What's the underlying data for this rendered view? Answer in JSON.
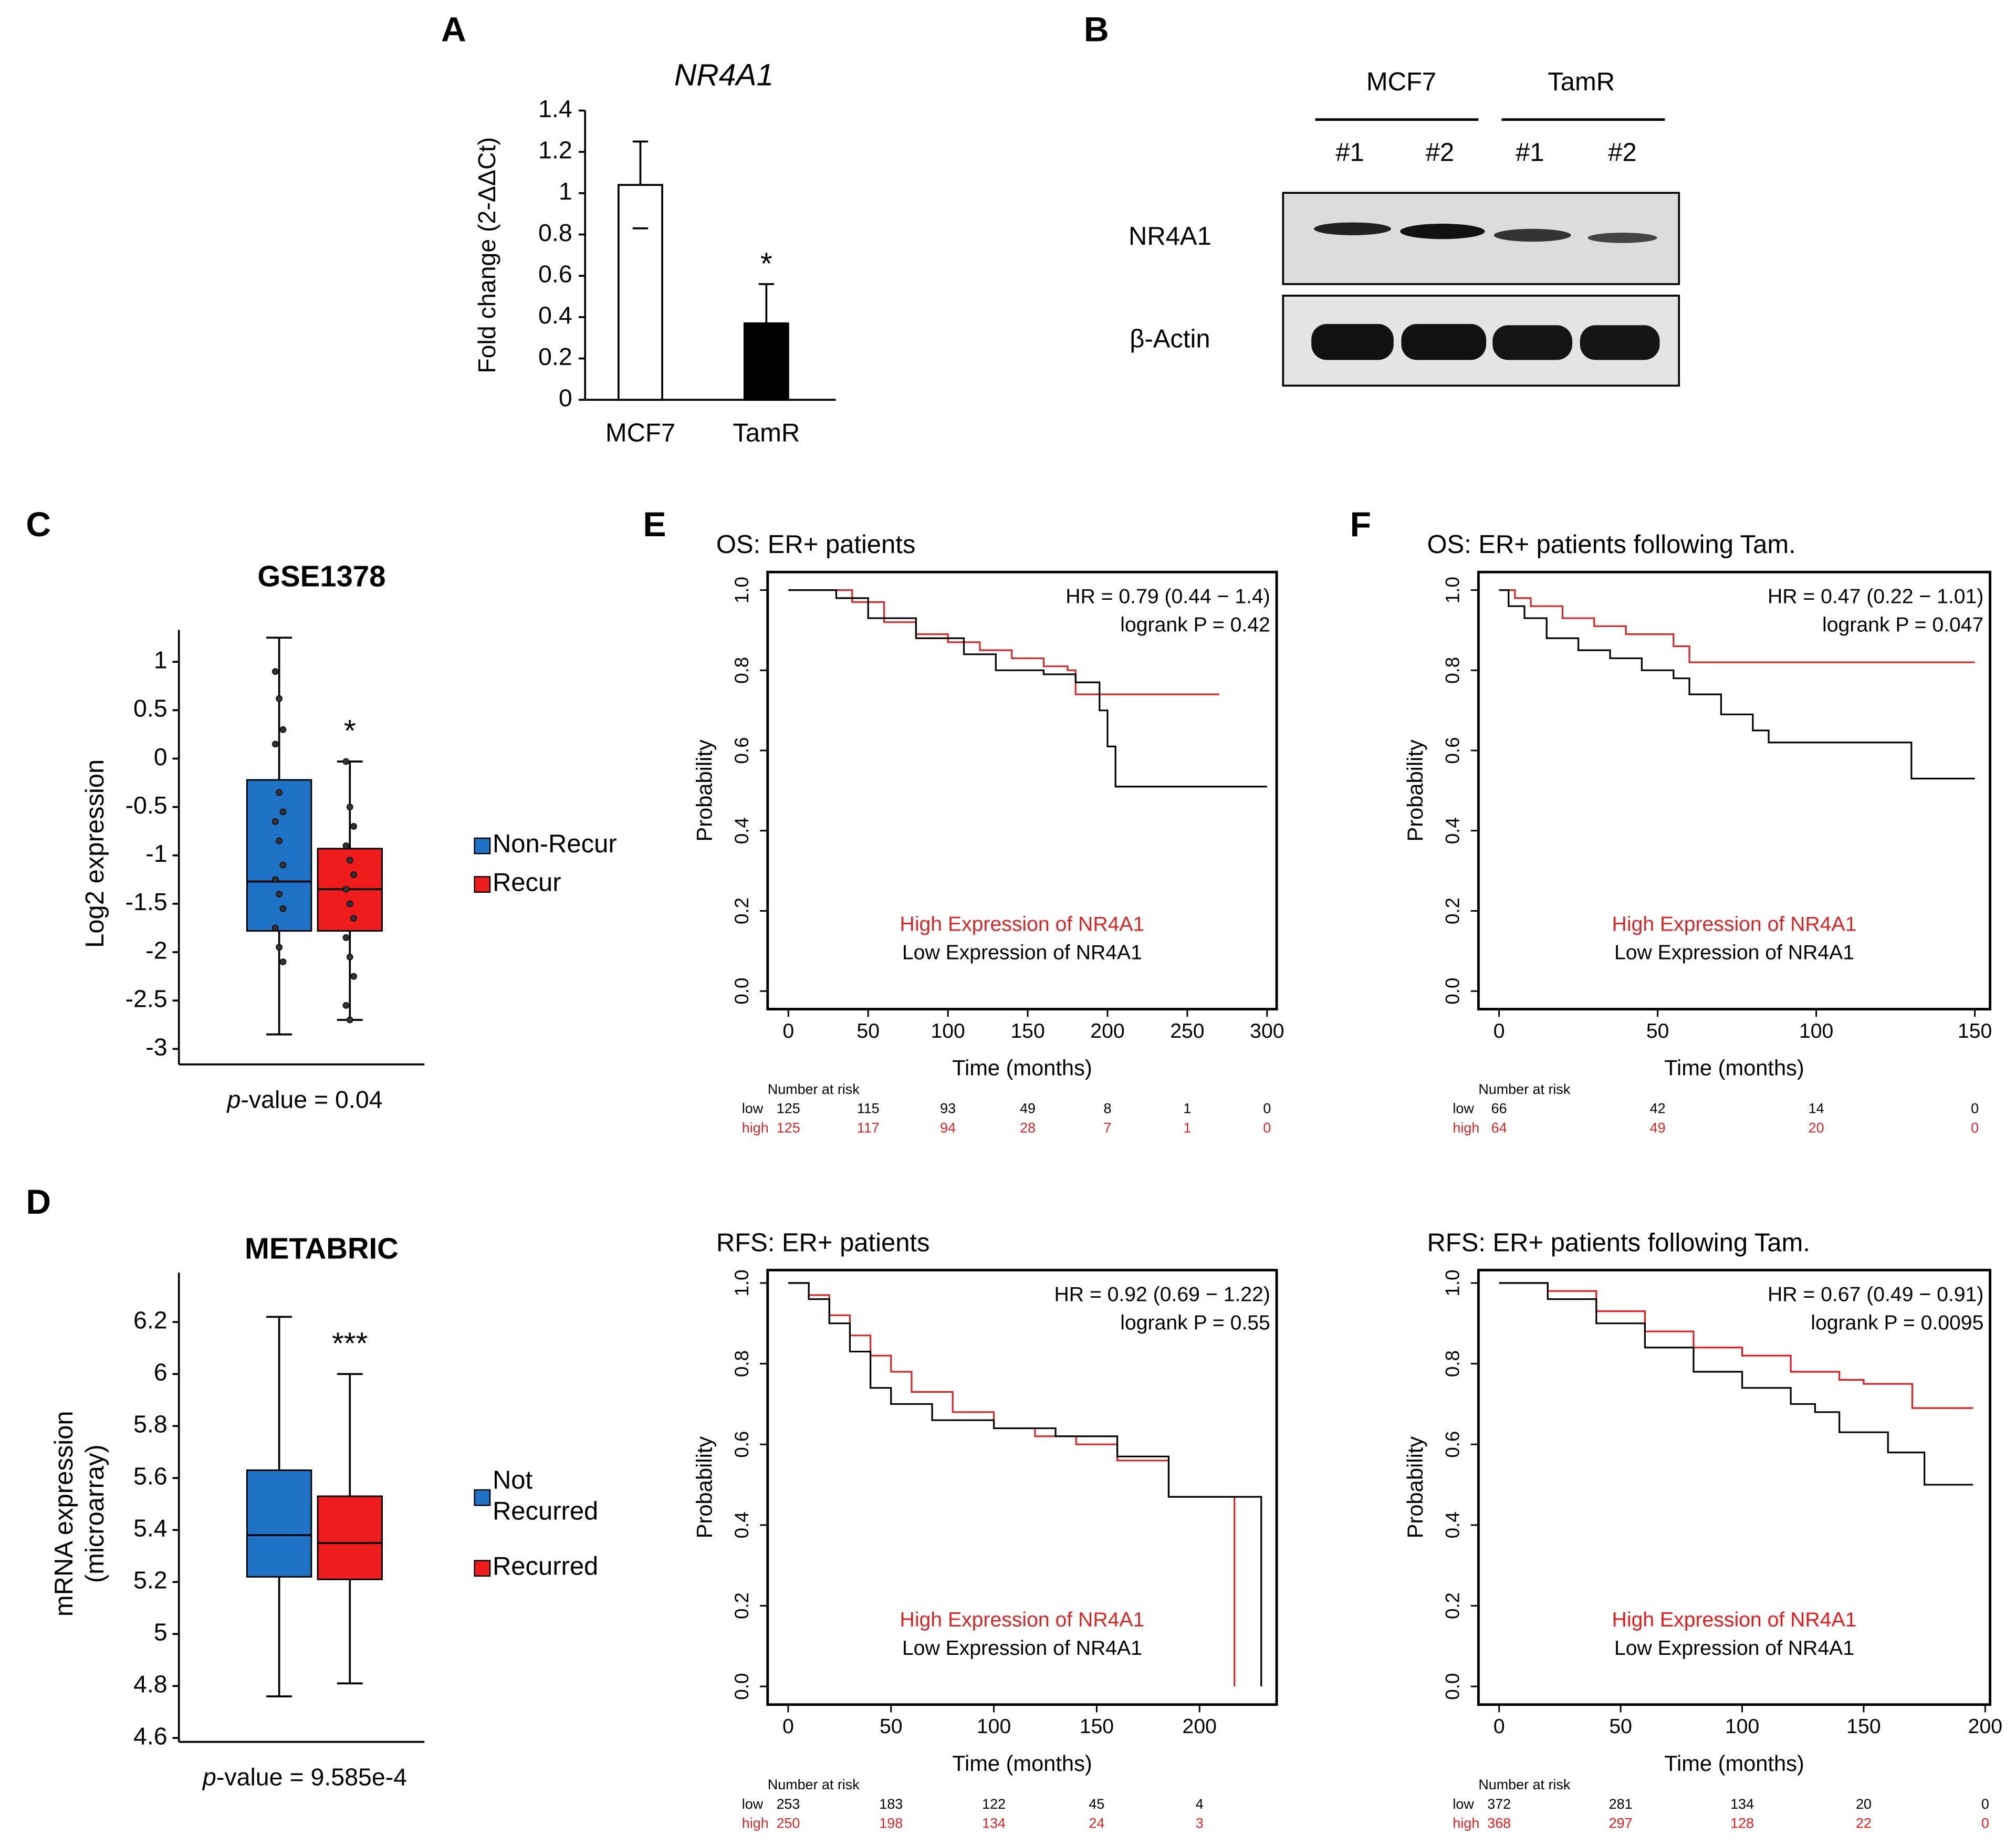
{
  "chart_data": [
    {
      "type": "bar",
      "panel_label": "A",
      "title": "NR4A1",
      "ylabel": "Fold change (2-ΔΔCt)",
      "categories": [
        "MCF7",
        "TamR"
      ],
      "values": [
        1.04,
        0.37
      ],
      "errors": [
        0.21,
        0.19
      ],
      "colors": [
        "#ffffff",
        "#000000"
      ],
      "ylim": [
        0,
        1.4
      ],
      "yticks": [
        0,
        0.2,
        0.4,
        0.6,
        0.8,
        1,
        1.2,
        1.4
      ],
      "annotations": [
        {
          "category": 1,
          "text": "*"
        }
      ]
    },
    {
      "type": "blot",
      "panel_label": "B",
      "groups": [
        "MCF7",
        "TamR"
      ],
      "lanes": [
        "#1",
        "#2",
        "#1",
        "#2"
      ],
      "rows": [
        "NR4A1",
        "β-Actin"
      ]
    },
    {
      "type": "box",
      "panel_label": "C",
      "title": "GSE1378",
      "ylabel": [
        "Log2 expression"
      ],
      "p_label": "p",
      "p_text": "-value = 0.04",
      "ylim": [
        -3.16,
        1.33
      ],
      "yticks": [
        -3,
        -2.5,
        -2,
        -1.5,
        -1,
        -0.5,
        0,
        0.5,
        1
      ],
      "series": [
        {
          "name": "Non-Recur",
          "color": "#1f73c6",
          "values": {
            "min": -2.85,
            "q1": -1.78,
            "median": -1.27,
            "q3": -0.22,
            "max": 1.25
          },
          "points": [
            0.9,
            0.62,
            0.3,
            0.15,
            -0.35,
            -0.55,
            -0.65,
            -0.85,
            -1.1,
            -1.25,
            -1.4,
            -1.55,
            -1.75,
            -1.95,
            -2.1
          ]
        },
        {
          "name": "Recur",
          "color": "#ee1c1c",
          "values": {
            "min": -2.7,
            "q1": -1.78,
            "median": -1.35,
            "q3": -0.93,
            "max": -0.03
          },
          "points": [
            -0.03,
            -0.5,
            -0.7,
            -0.9,
            -1.05,
            -1.2,
            -1.35,
            -1.5,
            -1.65,
            -1.85,
            -2.05,
            -2.25,
            -2.55,
            -2.7
          ]
        }
      ],
      "annotations": [
        {
          "category": 1,
          "text": "*"
        }
      ]
    },
    {
      "type": "box",
      "panel_label": "D",
      "title": "METABRIC",
      "ylabel": [
        "mRNA expression",
        "(microarray)"
      ],
      "p_label": "p",
      "p_text": "-value = 9.585e-4",
      "ylim": [
        4.585,
        6.39
      ],
      "yticks": [
        4.6,
        4.8,
        5,
        5.2,
        5.4,
        5.6,
        5.8,
        6,
        6.2
      ],
      "series": [
        {
          "name": "Not Recurred",
          "color": "#1f73c6",
          "values": {
            "min": 4.76,
            "q1": 5.22,
            "median": 5.38,
            "q3": 5.63,
            "max": 6.22
          }
        },
        {
          "name": "Recurred",
          "color": "#ee1c1c",
          "values": {
            "min": 4.81,
            "q1": 5.21,
            "median": 5.35,
            "q3": 5.53,
            "max": 6.0
          }
        }
      ],
      "annotations": [
        {
          "category": 1,
          "text": "***"
        }
      ]
    },
    {
      "type": "line",
      "panel_label": "E",
      "title": "OS: ER+ patients",
      "hr": "HR = 0.79 (0.44 − 1.4)",
      "logrank": "logrank P = 0.42",
      "xlabel": "Time (months)",
      "ylabel": "Probability",
      "xlim": [
        -13,
        306
      ],
      "ylim": [
        -0.045,
        1.045
      ],
      "xticks": [
        0,
        50,
        100,
        150,
        200,
        250,
        300
      ],
      "yticks": [
        {
          "value": 0,
          "label": "0.0"
        },
        {
          "value": 0.2,
          "label": "0.2"
        },
        {
          "value": 0.4,
          "label": "0.4"
        },
        {
          "value": 0.6,
          "label": "0.6"
        },
        {
          "value": 0.8,
          "label": "0.8"
        },
        {
          "value": 1,
          "label": "1.0"
        }
      ],
      "series": [
        {
          "name": "High Expression of NR4A1",
          "risk_label": "high",
          "color": "#d62728",
          "x": [
            0,
            20,
            40,
            60,
            80,
            100,
            120,
            140,
            160,
            175,
            180,
            270
          ],
          "values": [
            1,
            1,
            0.97,
            0.92,
            0.89,
            0.87,
            0.85,
            0.83,
            0.81,
            0.8,
            0.74,
            0.74
          ],
          "risk": [
            125,
            117,
            94,
            28,
            7,
            1,
            0
          ]
        },
        {
          "name": "Low Expression of NR4A1",
          "risk_label": "low",
          "color": "#000000",
          "x": [
            0,
            30,
            50,
            80,
            110,
            130,
            160,
            180,
            195,
            200,
            205,
            300
          ],
          "values": [
            1,
            0.98,
            0.93,
            0.88,
            0.84,
            0.8,
            0.79,
            0.77,
            0.7,
            0.61,
            0.51,
            0.51
          ],
          "risk": [
            125,
            115,
            93,
            49,
            8,
            1,
            0
          ]
        }
      ],
      "risk_title": "Number at risk"
    },
    {
      "type": "line",
      "title": "RFS: ER+ patients",
      "hr": "HR = 0.92 (0.69 − 1.22)",
      "logrank": "logrank P = 0.55",
      "xlabel": "Time (months)",
      "ylabel": "Probability",
      "xlim": [
        -10,
        237.5
      ],
      "ylim": [
        -0.045,
        1.032
      ],
      "xticks": [
        0,
        50,
        100,
        150,
        200
      ],
      "yticks": [
        {
          "value": 0,
          "label": "0.0"
        },
        {
          "value": 0.2,
          "label": "0.2"
        },
        {
          "value": 0.4,
          "label": "0.4"
        },
        {
          "value": 0.6,
          "label": "0.6"
        },
        {
          "value": 0.8,
          "label": "0.8"
        },
        {
          "value": 1,
          "label": "1.0"
        }
      ],
      "series": [
        {
          "name": "High Expression of NR4A1",
          "risk_label": "high",
          "color": "#d62728",
          "x": [
            0,
            10,
            20,
            30,
            40,
            50,
            60,
            80,
            100,
            120,
            140,
            160,
            185,
            217,
            217
          ],
          "values": [
            1,
            0.97,
            0.92,
            0.87,
            0.82,
            0.78,
            0.73,
            0.68,
            0.64,
            0.62,
            0.6,
            0.56,
            0.47,
            0.47,
            0
          ],
          "risk": [
            250,
            198,
            134,
            24,
            3
          ]
        },
        {
          "name": "Low Expression of NR4A1",
          "risk_label": "low",
          "color": "#000000",
          "x": [
            0,
            10,
            20,
            30,
            40,
            50,
            70,
            100,
            130,
            160,
            185,
            230,
            230
          ],
          "values": [
            1,
            0.96,
            0.9,
            0.83,
            0.74,
            0.7,
            0.66,
            0.64,
            0.62,
            0.57,
            0.47,
            0.47,
            0
          ],
          "risk": [
            253,
            183,
            122,
            45,
            4
          ]
        }
      ],
      "risk_title": "Number at risk"
    },
    {
      "type": "line",
      "panel_label": "F",
      "title": "OS: ER+ patients following Tam.",
      "hr": "HR = 0.47 (0.22 − 1.01)",
      "logrank": "logrank P = 0.047",
      "xlabel": "Time (months)",
      "ylabel": "Probability",
      "xlim": [
        -6.5,
        154.8
      ],
      "ylim": [
        -0.045,
        1.045
      ],
      "xticks": [
        0,
        50,
        100,
        150
      ],
      "yticks": [
        {
          "value": 0,
          "label": "0.0"
        },
        {
          "value": 0.2,
          "label": "0.2"
        },
        {
          "value": 0.4,
          "label": "0.4"
        },
        {
          "value": 0.6,
          "label": "0.6"
        },
        {
          "value": 0.8,
          "label": "0.8"
        },
        {
          "value": 1,
          "label": "1.0"
        }
      ],
      "series": [
        {
          "name": "High Expression of NR4A1",
          "risk_label": "high",
          "color": "#d62728",
          "x": [
            0,
            5,
            10,
            20,
            30,
            40,
            55,
            60,
            150
          ],
          "values": [
            1,
            0.98,
            0.96,
            0.93,
            0.91,
            0.89,
            0.86,
            0.82,
            0.82
          ],
          "risk": [
            64,
            49,
            20,
            0
          ]
        },
        {
          "name": "Low Expression of NR4A1",
          "risk_label": "low",
          "color": "#000000",
          "x": [
            0,
            3,
            8,
            15,
            25,
            35,
            45,
            55,
            60,
            70,
            80,
            85,
            130,
            150
          ],
          "values": [
            1,
            0.96,
            0.93,
            0.88,
            0.85,
            0.83,
            0.8,
            0.78,
            0.74,
            0.69,
            0.65,
            0.62,
            0.53,
            0.53
          ],
          "risk": [
            66,
            42,
            14,
            0
          ]
        }
      ],
      "risk_title": "Number at risk"
    },
    {
      "type": "line",
      "title": "RFS: ER+ patients following Tam.",
      "hr": "HR = 0.67 (0.49 − 0.91)",
      "logrank": "logrank P = 0.0095",
      "xlabel": "Time (months)",
      "ylabel": "Probability",
      "xlim": [
        -8.5,
        202
      ],
      "ylim": [
        -0.045,
        1.032
      ],
      "xticks": [
        0,
        50,
        100,
        150,
        200
      ],
      "yticks": [
        {
          "value": 0,
          "label": "0.0"
        },
        {
          "value": 0.2,
          "label": "0.2"
        },
        {
          "value": 0.4,
          "label": "0.4"
        },
        {
          "value": 0.6,
          "label": "0.6"
        },
        {
          "value": 0.8,
          "label": "0.8"
        },
        {
          "value": 1,
          "label": "1.0"
        }
      ],
      "series": [
        {
          "name": "High Expression of NR4A1",
          "risk_label": "high",
          "color": "#e41a1c",
          "x": [
            0,
            20,
            40,
            60,
            80,
            100,
            120,
            140,
            150,
            170,
            195
          ],
          "values": [
            1,
            0.98,
            0.93,
            0.88,
            0.84,
            0.82,
            0.78,
            0.76,
            0.75,
            0.69,
            0.69
          ],
          "risk": [
            368,
            297,
            128,
            22,
            0
          ]
        },
        {
          "name": "Low Expression of NR4A1",
          "risk_label": "low",
          "color": "#000000",
          "x": [
            0,
            20,
            40,
            60,
            80,
            100,
            120,
            130,
            140,
            160,
            175,
            195
          ],
          "values": [
            1,
            0.96,
            0.9,
            0.84,
            0.78,
            0.74,
            0.7,
            0.68,
            0.63,
            0.58,
            0.5,
            0.5
          ],
          "risk": [
            372,
            281,
            134,
            20,
            0
          ]
        }
      ],
      "risk_title": "Number at risk"
    }
  ]
}
